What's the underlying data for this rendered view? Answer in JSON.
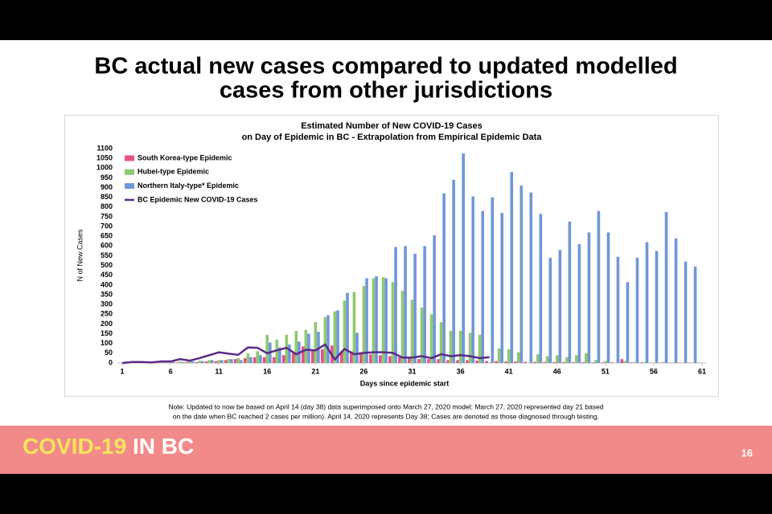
{
  "slide": {
    "title": [
      "BC actual new cases compared to updated modelled",
      "cases from other jurisdictions"
    ],
    "note": [
      "Note: Updated to now be based on April 14 (day 38)  data superimposed onto March 27, 2020 model; March 27, 2020 represented day 21 based",
      "on the date when BC reached 2 cases per million). April 14, 2020 represents Day 38; Cases are denoted as those diagnosed through testing."
    ],
    "footer": [
      "COVID-19",
      "IN BC"
    ],
    "page": 16
  },
  "chart_data": {
    "type": "bar",
    "title": [
      "Estimated Number of New COVID-19 Cases",
      "on Day of Epidemic in BC  - Extrapolation from Empirical Epidemic Data"
    ],
    "x_label": "Days since epidemic start",
    "y_label": "N of New Cases",
    "x": [
      1,
      2,
      3,
      4,
      5,
      6,
      7,
      8,
      9,
      10,
      11,
      12,
      13,
      14,
      15,
      16,
      17,
      18,
      19,
      20,
      21,
      22,
      23,
      24,
      25,
      26,
      27,
      28,
      29,
      30,
      31,
      32,
      33,
      34,
      35,
      36,
      37,
      38,
      39,
      40,
      41,
      42,
      43,
      44,
      45,
      46,
      47,
      48,
      49,
      50,
      51,
      52,
      53,
      54,
      55,
      56,
      57,
      58,
      59,
      60,
      61
    ],
    "xlim": [
      0.5,
      61.5
    ],
    "xticks": [
      1,
      6,
      11,
      16,
      21,
      26,
      31,
      36,
      41,
      46,
      51,
      56,
      61
    ],
    "ylim": [
      0,
      1100
    ],
    "yticks": [
      0,
      50,
      100,
      150,
      200,
      250,
      300,
      350,
      400,
      450,
      500,
      550,
      600,
      650,
      700,
      750,
      800,
      850,
      900,
      950,
      1000,
      1050,
      1100
    ],
    "grid": false,
    "legend": "upper left",
    "series": [
      {
        "name": "South Korea-type Epidemic",
        "color": "#e8508a",
        "type": "bar",
        "values": [
          0,
          0,
          0,
          0,
          0,
          2,
          3,
          5,
          5,
          8,
          10,
          15,
          20,
          25,
          30,
          30,
          30,
          40,
          50,
          85,
          65,
          70,
          90,
          60,
          60,
          55,
          45,
          40,
          35,
          30,
          25,
          20,
          20,
          20,
          15,
          15,
          15,
          12,
          10,
          10,
          8,
          8,
          6,
          6,
          5,
          5,
          5,
          4,
          4,
          3,
          3,
          3,
          20,
          3,
          3,
          2,
          2,
          2,
          2,
          2,
          2
        ]
      },
      {
        "name": "Hubei-type Epidemic",
        "color": "#8fc96f",
        "type": "bar",
        "values": [
          0,
          2,
          3,
          3,
          5,
          5,
          8,
          10,
          12,
          15,
          15,
          20,
          25,
          50,
          60,
          145,
          120,
          145,
          165,
          170,
          210,
          235,
          265,
          320,
          365,
          395,
          435,
          440,
          415,
          370,
          325,
          285,
          250,
          210,
          165,
          165,
          155,
          145,
          0,
          75,
          70,
          55,
          0,
          45,
          35,
          40,
          30,
          40,
          50,
          15,
          10,
          0,
          10,
          5,
          5,
          0,
          5,
          0,
          0,
          0,
          0
        ]
      },
      {
        "name": "Northern Italy-type* Epidemic",
        "color": "#6f97d8",
        "type": "bar",
        "values": [
          0,
          0,
          0,
          0,
          2,
          5,
          5,
          8,
          10,
          15,
          15,
          20,
          15,
          30,
          40,
          105,
          80,
          95,
          110,
          150,
          160,
          245,
          270,
          360,
          155,
          435,
          445,
          435,
          595,
          600,
          560,
          600,
          655,
          870,
          940,
          1075,
          855,
          780,
          850,
          770,
          980,
          910,
          875,
          765,
          540,
          580,
          725,
          610,
          670,
          780,
          670,
          545,
          415,
          540,
          620,
          575,
          775,
          640,
          520,
          495,
          0
        ]
      },
      {
        "name": "BC Epidemic New COVID-19 Cases",
        "color": "#5b2a86",
        "type": "line",
        "values": [
          0,
          5,
          5,
          3,
          8,
          8,
          20,
          12,
          25,
          40,
          55,
          48,
          42,
          80,
          78,
          50,
          65,
          78,
          45,
          68,
          65,
          95,
          18,
          72,
          45,
          52,
          55,
          55,
          52,
          28,
          28,
          35,
          25,
          45,
          35,
          40,
          35,
          25,
          30,
          null,
          null,
          null,
          null,
          null,
          null,
          null,
          null,
          null,
          null,
          null,
          null,
          null,
          null,
          null,
          null,
          null,
          null,
          null,
          null,
          null,
          null
        ]
      }
    ]
  }
}
